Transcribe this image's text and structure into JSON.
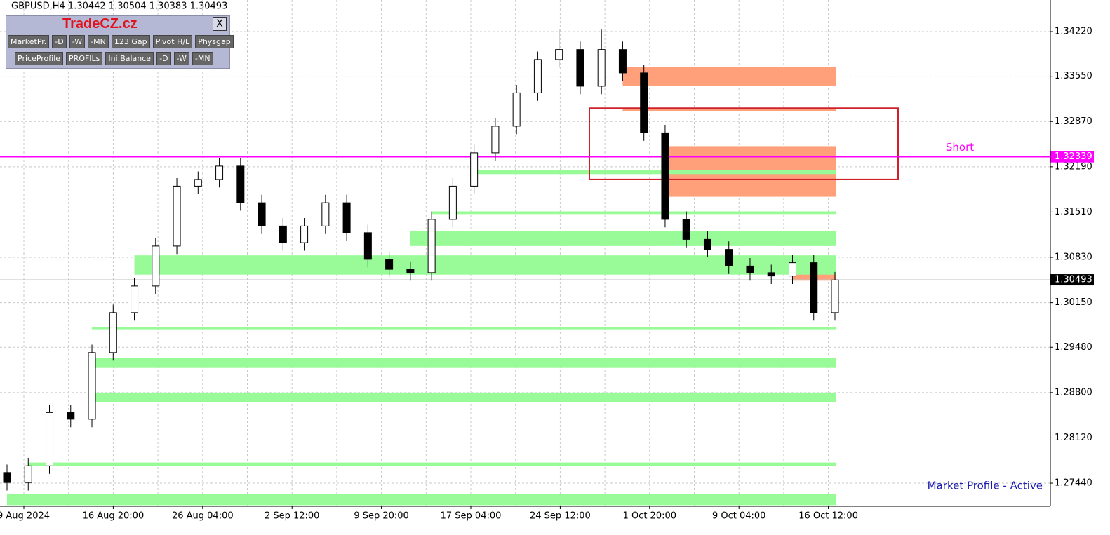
{
  "chart_data": {
    "type": "candlestick",
    "title": "GBPUSD,H4  1.30442 1.30504 1.30383 1.30493",
    "x_labels": [
      "9 Aug 2024",
      "16 Aug 20:00",
      "26 Aug 04:00",
      "2 Sep 12:00",
      "9 Sep 20:00",
      "17 Sep 04:00",
      "24 Sep 12:00",
      "1 Oct 20:00",
      "9 Oct 04:00",
      "16 Oct 12:00"
    ],
    "candles": {
      "open": [
        1.276,
        1.2745,
        1.277,
        1.285,
        1.284,
        1.294,
        1.3,
        1.304,
        1.31,
        1.319,
        1.32,
        1.322,
        1.3165,
        1.313,
        1.3105,
        1.313,
        1.3165,
        1.312,
        1.308,
        1.3065,
        1.306,
        1.314,
        1.319,
        1.324,
        1.328,
        1.333,
        1.338,
        1.3395,
        1.334,
        1.3395,
        1.336,
        1.327,
        1.314,
        1.311,
        1.3095,
        1.307,
        1.306,
        1.3055,
        1.3075,
        1.3
      ],
      "high": [
        1.2772,
        1.2782,
        1.2862,
        1.2862,
        1.2952,
        1.3012,
        1.3052,
        1.3112,
        1.3202,
        1.3212,
        1.3232,
        1.3232,
        1.3177,
        1.3142,
        1.3142,
        1.3177,
        1.3177,
        1.3132,
        1.3092,
        1.3077,
        1.3152,
        1.3202,
        1.3252,
        1.3292,
        1.3342,
        1.3392,
        1.3425,
        1.3407,
        1.3425,
        1.3407,
        1.3372,
        1.3282,
        1.3152,
        1.3122,
        1.3107,
        1.3082,
        1.3072,
        1.3087,
        1.3087,
        1.3061
      ],
      "low": [
        1.2733,
        1.2733,
        1.2758,
        1.2828,
        1.2828,
        1.2928,
        1.2988,
        1.3028,
        1.3088,
        1.3178,
        1.3188,
        1.3153,
        1.3118,
        1.3093,
        1.3093,
        1.3118,
        1.3108,
        1.3068,
        1.3053,
        1.3048,
        1.3048,
        1.3128,
        1.3178,
        1.3228,
        1.3268,
        1.3318,
        1.3368,
        1.3328,
        1.3328,
        1.3348,
        1.3258,
        1.3128,
        1.3098,
        1.3083,
        1.3058,
        1.3048,
        1.3043,
        1.3043,
        1.2988,
        1.2988
      ],
      "close": [
        1.2745,
        1.277,
        1.285,
        1.284,
        1.294,
        1.3,
        1.304,
        1.31,
        1.319,
        1.32,
        1.322,
        1.3165,
        1.313,
        1.3105,
        1.313,
        1.3165,
        1.312,
        1.308,
        1.3065,
        1.306,
        1.314,
        1.319,
        1.324,
        1.328,
        1.333,
        1.338,
        1.3395,
        1.334,
        1.3395,
        1.336,
        1.327,
        1.314,
        1.311,
        1.3095,
        1.307,
        1.306,
        1.3055,
        1.3075,
        1.3,
        1.3049
      ]
    },
    "zones": [
      {
        "low": 1.3341,
        "high": 1.3369,
        "start": 29,
        "color": "#ffa07a"
      },
      {
        "low": 1.3302,
        "high": 1.3307,
        "start": 29,
        "color": "#ffa07a"
      },
      {
        "low": 1.3174,
        "high": 1.325,
        "start": 31,
        "color": "#ffa07a"
      },
      {
        "low": 1.3119,
        "high": 1.3123,
        "start": 31,
        "color": "#ffa07a"
      },
      {
        "low": 1.3048,
        "high": 1.3073,
        "start": 37,
        "color": "#ffa07a"
      },
      {
        "low": 1.3208,
        "high": 1.3214,
        "start": 22,
        "color": "#98fb98"
      },
      {
        "low": 1.3148,
        "high": 1.3152,
        "start": 20,
        "color": "#98fb98"
      },
      {
        "low": 1.31,
        "high": 1.3122,
        "start": 19,
        "color": "#98fb98"
      },
      {
        "low": 1.3057,
        "high": 1.3086,
        "start": 6,
        "color": "#98fb98"
      },
      {
        "low": 1.2975,
        "high": 1.2978,
        "start": 4,
        "color": "#98fb98"
      },
      {
        "low": 1.2917,
        "high": 1.2932,
        "start": 4,
        "color": "#98fb98"
      },
      {
        "low": 1.2866,
        "high": 1.288,
        "start": 4,
        "color": "#98fb98"
      },
      {
        "low": 1.277,
        "high": 1.2775,
        "start": 1,
        "color": "#98fb98"
      },
      {
        "low": 1.2711,
        "high": 1.2728,
        "start": 0,
        "color": "#98fb98"
      }
    ],
    "box": {
      "low": 1.32,
      "high": 1.3307,
      "label": "Short",
      "color": "#d0202a"
    },
    "level_line": {
      "value": 1.32339,
      "color": "#ff00ff"
    },
    "price_line": {
      "value": 1.30493
    },
    "annotation": "Market Profile - Active",
    "bull_color": "#ffffff",
    "bear_color": "#000000",
    "ylim": [
      1.27093,
      1.34694
    ],
    "yticks": [
      {
        "value": 1.3422,
        "label": "1.34220"
      },
      {
        "value": 1.3355,
        "label": "1.33550"
      },
      {
        "value": 1.3287,
        "label": "1.32870"
      },
      {
        "value": 1.3219,
        "label": "1.32190"
      },
      {
        "value": 1.3151,
        "label": "1.31510"
      },
      {
        "value": 1.3083,
        "label": "1.30830"
      },
      {
        "value": 1.3015,
        "label": "1.30150"
      },
      {
        "value": 1.2948,
        "label": "1.29480"
      },
      {
        "value": 1.288,
        "label": "1.28800"
      },
      {
        "value": 1.2812,
        "label": "1.28120"
      },
      {
        "value": 1.2744,
        "label": "1.27440"
      }
    ],
    "grid": true
  },
  "panel": {
    "brand": "TradeCZ.cz",
    "close": "X",
    "buttons": [
      [
        "MarketPr.",
        "-D",
        "-W",
        "-MN",
        "123 Gap",
        "Pivot H/L",
        "Physgap"
      ],
      [
        "PriceProfile",
        "PROFILs",
        "Ini.Balance",
        "-D",
        "-W",
        "-MN"
      ]
    ]
  }
}
